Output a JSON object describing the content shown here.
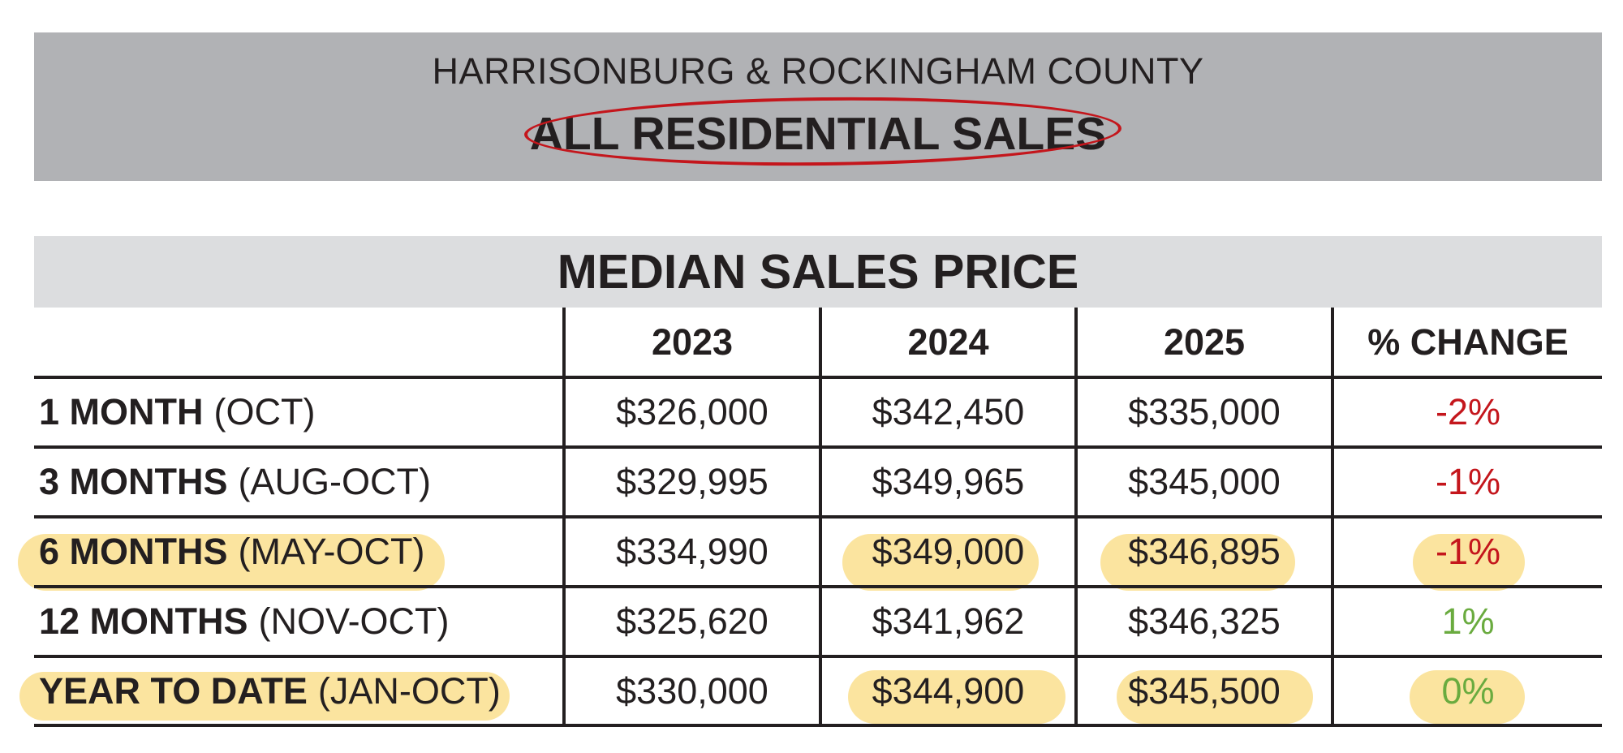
{
  "banner": {
    "subtitle": "HARRISONBURG & ROCKINGHAM COUNTY",
    "title": "ALL RESIDENTIAL SALES"
  },
  "table": {
    "title": "MEDIAN SALES PRICE",
    "columns": [
      "2023",
      "2024",
      "2025",
      "% CHANGE"
    ],
    "rows": [
      {
        "label_bold": "1 MONTH",
        "label_paren": "(OCT)",
        "values": [
          "$326,000",
          "$342,450",
          "$335,000"
        ],
        "change": "-2%",
        "change_color": "#c4161c"
      },
      {
        "label_bold": "3 MONTHS",
        "label_paren": "(AUG-OCT)",
        "values": [
          "$329,995",
          "$349,965",
          "$345,000"
        ],
        "change": "-1%",
        "change_color": "#c4161c"
      },
      {
        "label_bold": "6 MONTHS",
        "label_paren": "(MAY-OCT)",
        "values": [
          "$334,990",
          "$349,000",
          "$346,895"
        ],
        "change": "-1%",
        "change_color": "#c4161c"
      },
      {
        "label_bold": "12 MONTHS",
        "label_paren": "(NOV-OCT)",
        "values": [
          "$325,620",
          "$341,962",
          "$346,325"
        ],
        "change": "1%",
        "change_color": "#6aab3f"
      },
      {
        "label_bold": "YEAR TO DATE",
        "label_paren": "(JAN-OCT)",
        "values": [
          "$330,000",
          "$344,900",
          "$345,500"
        ],
        "change": "0%",
        "change_color": "#6aab3f"
      }
    ]
  },
  "colors": {
    "banner_bg": "#b1b2b5",
    "header_bg": "#dcdddf",
    "highlight": "#fbe39a",
    "circle": "#c4161c",
    "negative": "#c4161c",
    "positive": "#6aab3f"
  }
}
